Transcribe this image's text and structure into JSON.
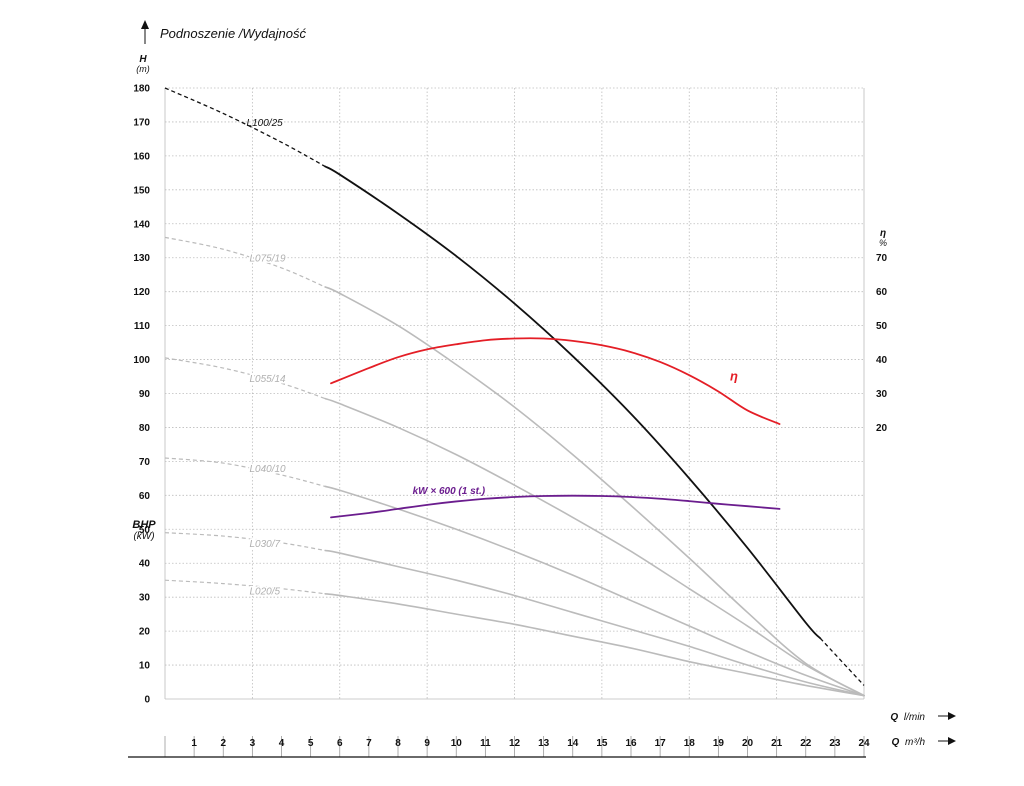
{
  "chart_data": {
    "type": "line",
    "title": "Podnoszenie /Wydajność",
    "y_axis_left": {
      "label": "H",
      "unit": "(m)",
      "ticks": [
        0,
        10,
        20,
        30,
        40,
        50,
        60,
        70,
        80,
        90,
        100,
        110,
        120,
        130,
        140,
        150,
        160,
        170,
        180
      ],
      "range": [
        0,
        180
      ]
    },
    "bhp_axis": {
      "label": "BHP",
      "unit": "(kW)"
    },
    "y_axis_right": {
      "label": "η",
      "unit": "%",
      "ticks": [
        20,
        30,
        40,
        50,
        60,
        70
      ]
    },
    "x_axis_top": {
      "label": "Q",
      "unit": "l/min",
      "range": [
        0,
        24
      ]
    },
    "x_axis_bottom": {
      "label": "Q",
      "unit": "m³/h",
      "ticks": [
        1,
        2,
        3,
        4,
        5,
        6,
        7,
        8,
        9,
        10,
        11,
        12,
        13,
        14,
        15,
        16,
        17,
        18,
        19,
        20,
        21,
        22,
        23,
        24
      ],
      "range": [
        0,
        24
      ]
    },
    "grid": true,
    "series": [
      {
        "name": "L100/25",
        "color": "#111111",
        "dashed_ranges": [
          [
            0,
            5.5
          ],
          [
            22.5,
            24
          ]
        ],
        "label_x": 2.8,
        "label_y": 170,
        "points": [
          [
            0,
            180
          ],
          [
            2,
            172.5
          ],
          [
            4,
            164
          ],
          [
            6,
            154.5
          ],
          [
            8,
            143
          ],
          [
            10,
            130.5
          ],
          [
            12,
            116.5
          ],
          [
            14,
            101
          ],
          [
            16,
            84
          ],
          [
            18,
            65
          ],
          [
            20,
            44.5
          ],
          [
            22,
            22.5
          ],
          [
            24,
            4
          ]
        ]
      },
      {
        "name": "L075/19",
        "color": "#bbbbbb",
        "dashed_ranges": [
          [
            0,
            5.5
          ]
        ],
        "label_x": 2.9,
        "label_y": 130,
        "points": [
          [
            0,
            136
          ],
          [
            2,
            132.5
          ],
          [
            4,
            127
          ],
          [
            6,
            119.5
          ],
          [
            8,
            110
          ],
          [
            10,
            98.5
          ],
          [
            12,
            86
          ],
          [
            14,
            72
          ],
          [
            16,
            57
          ],
          [
            18,
            41.5
          ],
          [
            20,
            25.5
          ],
          [
            22,
            10.5
          ],
          [
            24,
            1
          ]
        ]
      },
      {
        "name": "L055/14",
        "color": "#bbbbbb",
        "dashed_ranges": [
          [
            0,
            5.5
          ]
        ],
        "label_x": 2.9,
        "label_y": 94.5,
        "points": [
          [
            0,
            100.5
          ],
          [
            2,
            97.5
          ],
          [
            4,
            93
          ],
          [
            6,
            87
          ],
          [
            8,
            80
          ],
          [
            10,
            72
          ],
          [
            12,
            63
          ],
          [
            14,
            53.5
          ],
          [
            16,
            43.5
          ],
          [
            18,
            32.5
          ],
          [
            20,
            21.5
          ],
          [
            22,
            10
          ],
          [
            24,
            1
          ]
        ]
      },
      {
        "name": "L040/10",
        "color": "#bbbbbb",
        "dashed_ranges": [
          [
            0,
            5.5
          ]
        ],
        "label_x": 2.9,
        "label_y": 68,
        "points": [
          [
            0,
            71
          ],
          [
            2,
            69.5
          ],
          [
            4,
            66
          ],
          [
            6,
            61.5
          ],
          [
            8,
            56
          ],
          [
            10,
            50
          ],
          [
            12,
            43.5
          ],
          [
            14,
            36.5
          ],
          [
            16,
            29
          ],
          [
            18,
            21.5
          ],
          [
            20,
            14
          ],
          [
            22,
            7
          ],
          [
            24,
            1
          ]
        ]
      },
      {
        "name": "L030/7",
        "color": "#bbbbbb",
        "dashed_ranges": [
          [
            0,
            5.5
          ]
        ],
        "label_x": 2.9,
        "label_y": 46,
        "points": [
          [
            0,
            49
          ],
          [
            2,
            48
          ],
          [
            4,
            46
          ],
          [
            6,
            43
          ],
          [
            8,
            39
          ],
          [
            10,
            35
          ],
          [
            12,
            30.5
          ],
          [
            14,
            25.5
          ],
          [
            16,
            20.5
          ],
          [
            18,
            15.5
          ],
          [
            20,
            10
          ],
          [
            22,
            5
          ],
          [
            24,
            1
          ]
        ]
      },
      {
        "name": "L020/5",
        "color": "#bbbbbb",
        "dashed_ranges": [
          [
            0,
            5.5
          ]
        ],
        "label_x": 2.9,
        "label_y": 32,
        "points": [
          [
            0,
            35
          ],
          [
            2,
            34
          ],
          [
            4,
            32.5
          ],
          [
            6,
            30.5
          ],
          [
            8,
            28
          ],
          [
            10,
            25
          ],
          [
            12,
            22
          ],
          [
            14,
            18.5
          ],
          [
            16,
            15
          ],
          [
            18,
            11
          ],
          [
            20,
            7.5
          ],
          [
            22,
            4
          ],
          [
            24,
            1
          ]
        ]
      },
      {
        "name": "η",
        "color": "#e41e26",
        "dashed_ranges": [],
        "label_x": 19.4,
        "label_y": 95,
        "points": [
          [
            5.7,
            93
          ],
          [
            7,
            97.5
          ],
          [
            8,
            100.7
          ],
          [
            9,
            103
          ],
          [
            10,
            104.5
          ],
          [
            11,
            105.7
          ],
          [
            12,
            106.2
          ],
          [
            13,
            106.2
          ],
          [
            14,
            105.5
          ],
          [
            15,
            104.2
          ],
          [
            16,
            102.2
          ],
          [
            17,
            99.3
          ],
          [
            18,
            95.4
          ],
          [
            19,
            90.6
          ],
          [
            20,
            85
          ],
          [
            21.1,
            81
          ]
        ]
      },
      {
        "name": "kW × 600 (1 st.)",
        "color": "#6b1d8e",
        "dashed_ranges": [],
        "label_x": 8.5,
        "label_y": 61.5,
        "points": [
          [
            5.7,
            53.5
          ],
          [
            7,
            54.8
          ],
          [
            8,
            56
          ],
          [
            9,
            57.2
          ],
          [
            10,
            58.2
          ],
          [
            11,
            59
          ],
          [
            12,
            59.5
          ],
          [
            13,
            59.8
          ],
          [
            14,
            59.9
          ],
          [
            15,
            59.8
          ],
          [
            16,
            59.5
          ],
          [
            17,
            59
          ],
          [
            18,
            58.3
          ],
          [
            19,
            57.5
          ],
          [
            20,
            56.8
          ],
          [
            21.1,
            56
          ]
        ]
      }
    ]
  }
}
